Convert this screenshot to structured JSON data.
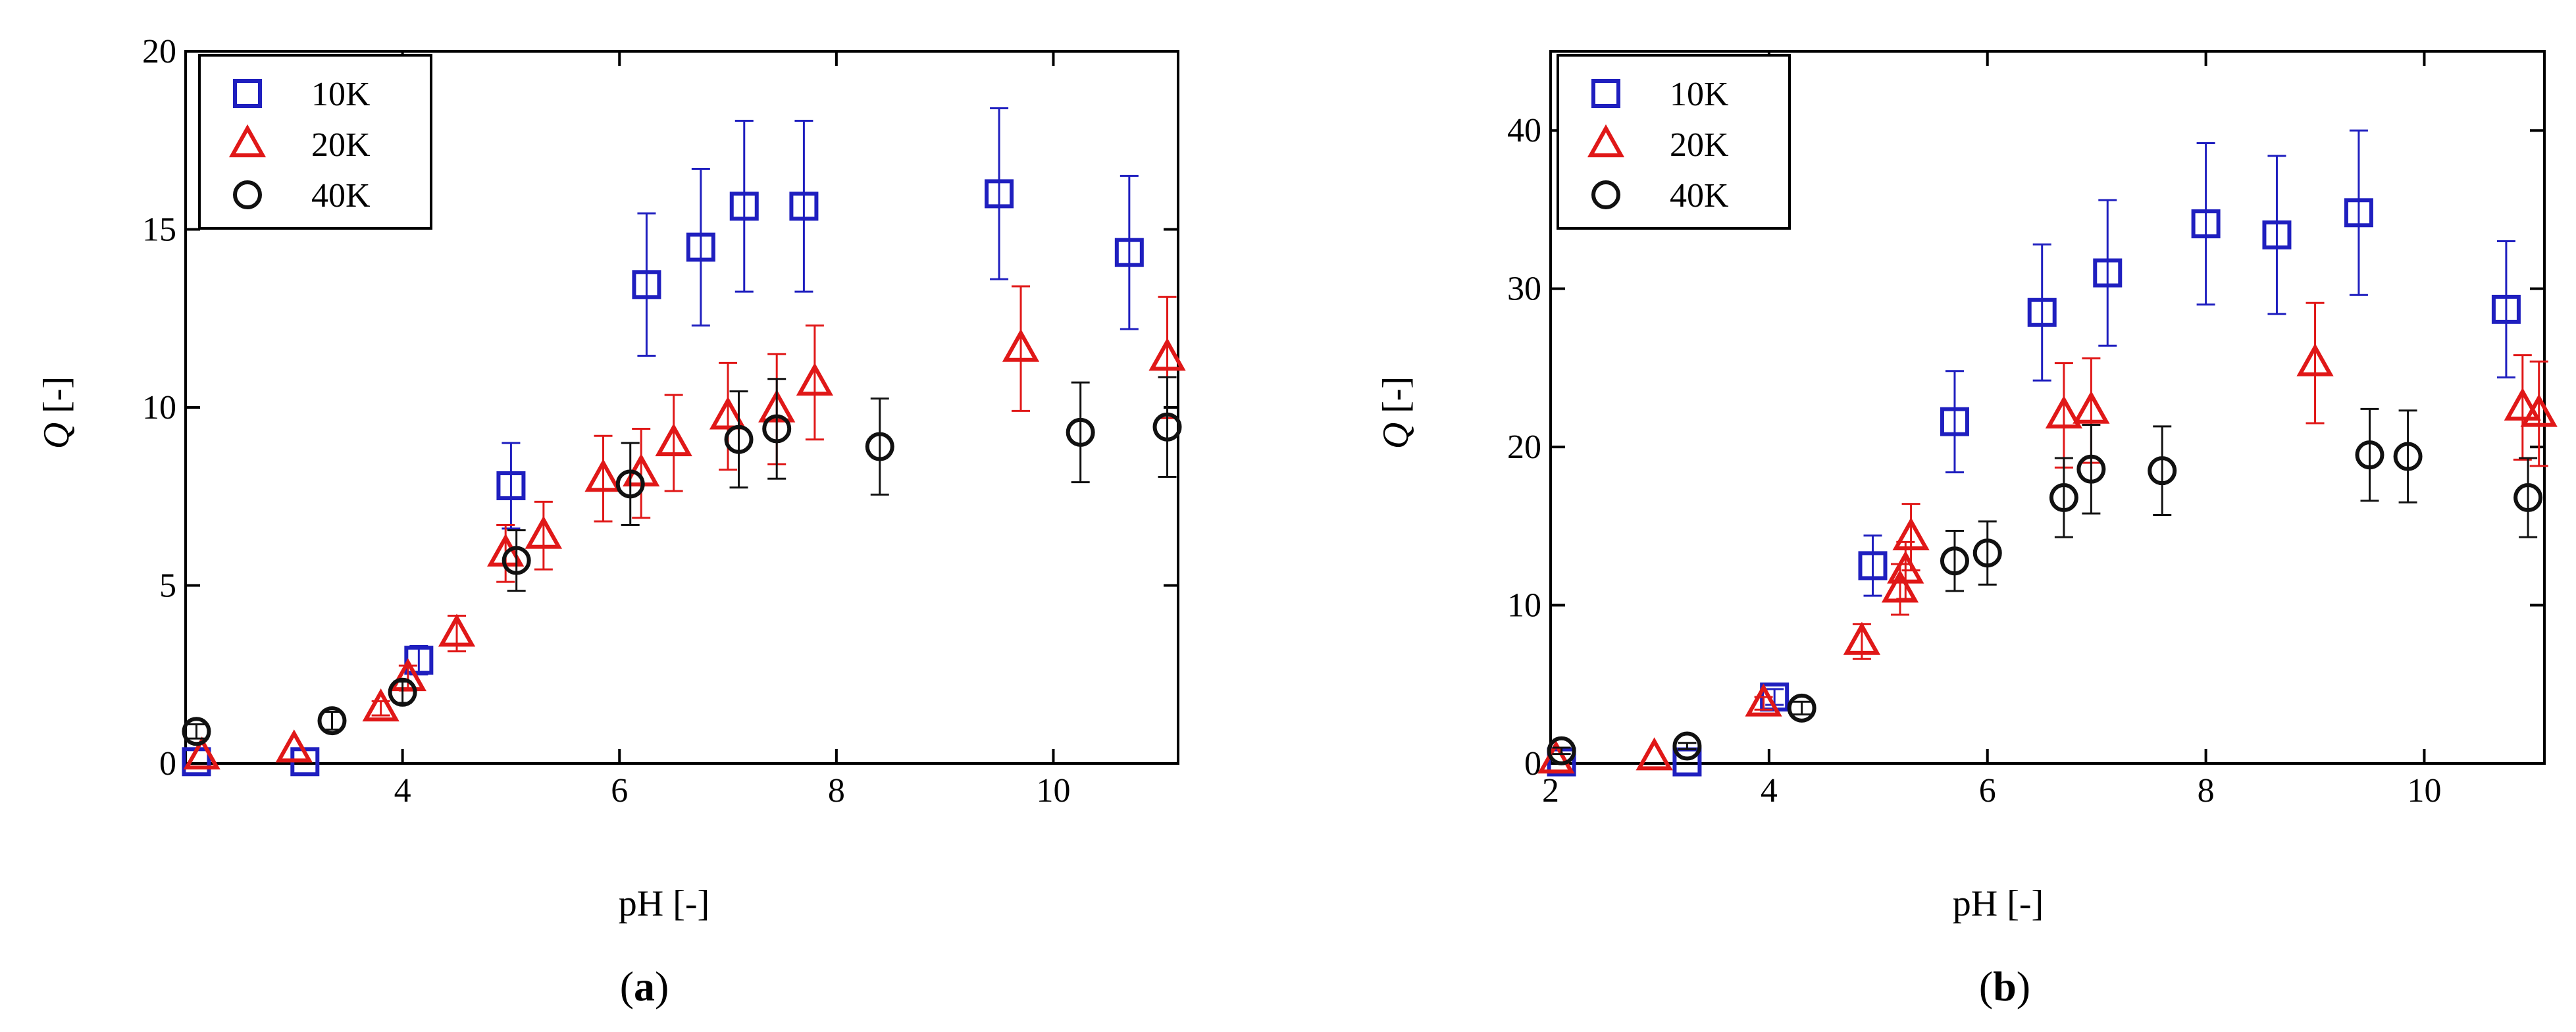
{
  "charts": [
    {
      "panel_label_open": "(",
      "panel_label_letter": "a",
      "panel_label_close": ")",
      "xlabel": "pH [-]",
      "ylabel_symbol": "Q",
      "ylabel_unit": " [-]"
    },
    {
      "panel_label_open": "(",
      "panel_label_letter": "b",
      "panel_label_close": ")",
      "xlabel": "pH [-]",
      "ylabel_symbol": "Q",
      "ylabel_unit": " [-]"
    }
  ],
  "chart_data": [
    {
      "type": "scatter",
      "panel": "a",
      "xlabel": "pH [-]",
      "ylabel": "Q [-]",
      "xlim": [
        2,
        11.15
      ],
      "ylim": [
        0,
        20
      ],
      "xticks": [
        4,
        6,
        8,
        10
      ],
      "yticks": [
        0,
        5,
        10,
        15,
        20
      ],
      "grid": false,
      "legend_position": "top-left",
      "series": [
        {
          "name": "10K",
          "marker": "square",
          "color": "#1f1fbf",
          "points": [
            {
              "x": 2.1,
              "y": 0.05,
              "err": 0
            },
            {
              "x": 3.1,
              "y": 0.05,
              "err": 0
            },
            {
              "x": 4.15,
              "y": 2.9,
              "err": 0.4
            },
            {
              "x": 5.0,
              "y": 7.8,
              "err": 1.2
            },
            {
              "x": 6.25,
              "y": 13.45,
              "err": 2.0
            },
            {
              "x": 6.75,
              "y": 14.5,
              "err": 2.2
            },
            {
              "x": 7.15,
              "y": 15.65,
              "err": 2.4
            },
            {
              "x": 7.7,
              "y": 15.65,
              "err": 2.4
            },
            {
              "x": 9.5,
              "y": 16.0,
              "err": 2.4
            },
            {
              "x": 10.7,
              "y": 14.35,
              "err": 2.15
            }
          ]
        },
        {
          "name": "20K",
          "marker": "triangle",
          "color": "#e01818",
          "points": [
            {
              "x": 2.15,
              "y": 0.2,
              "err": 0
            },
            {
              "x": 3.0,
              "y": 0.4,
              "err": 0
            },
            {
              "x": 3.8,
              "y": 1.55,
              "err": 0.2
            },
            {
              "x": 4.05,
              "y": 2.4,
              "err": 0.35
            },
            {
              "x": 4.5,
              "y": 3.65,
              "err": 0.5
            },
            {
              "x": 4.95,
              "y": 5.9,
              "err": 0.8
            },
            {
              "x": 5.3,
              "y": 6.4,
              "err": 0.95
            },
            {
              "x": 5.85,
              "y": 8.0,
              "err": 1.2
            },
            {
              "x": 6.2,
              "y": 8.15,
              "err": 1.25
            },
            {
              "x": 6.5,
              "y": 9.0,
              "err": 1.35
            },
            {
              "x": 7.0,
              "y": 9.75,
              "err": 1.5
            },
            {
              "x": 7.45,
              "y": 9.95,
              "err": 1.55
            },
            {
              "x": 7.8,
              "y": 10.7,
              "err": 1.6
            },
            {
              "x": 9.7,
              "y": 11.65,
              "err": 1.75
            },
            {
              "x": 11.05,
              "y": 11.4,
              "err": 1.7
            }
          ]
        },
        {
          "name": "40K",
          "marker": "circle",
          "color": "#111111",
          "points": [
            {
              "x": 2.1,
              "y": 0.9,
              "err": 0.2
            },
            {
              "x": 3.35,
              "y": 1.2,
              "err": 0.25
            },
            {
              "x": 4.0,
              "y": 2.0,
              "err": 0.3
            },
            {
              "x": 5.05,
              "y": 5.7,
              "err": 0.85
            },
            {
              "x": 6.1,
              "y": 7.85,
              "err": 1.15
            },
            {
              "x": 7.1,
              "y": 9.1,
              "err": 1.35
            },
            {
              "x": 7.45,
              "y": 9.4,
              "err": 1.4
            },
            {
              "x": 8.4,
              "y": 8.9,
              "err": 1.35
            },
            {
              "x": 10.25,
              "y": 9.3,
              "err": 1.4
            },
            {
              "x": 11.05,
              "y": 9.45,
              "err": 1.4
            }
          ]
        }
      ]
    },
    {
      "type": "scatter",
      "panel": "b",
      "xlabel": "pH [-]",
      "ylabel": "Q [-]",
      "xlim": [
        2,
        11.1
      ],
      "ylim": [
        0,
        45
      ],
      "xticks": [
        2,
        4,
        6,
        8,
        10
      ],
      "yticks": [
        0,
        10,
        20,
        30,
        40
      ],
      "grid": false,
      "legend_position": "top-left",
      "series": [
        {
          "name": "10K",
          "marker": "square",
          "color": "#1f1fbf",
          "points": [
            {
              "x": 2.1,
              "y": 0.1,
              "err": 0
            },
            {
              "x": 3.25,
              "y": 0.1,
              "err": 0
            },
            {
              "x": 4.05,
              "y": 4.2,
              "err": 0.5
            },
            {
              "x": 4.95,
              "y": 12.5,
              "err": 1.9
            },
            {
              "x": 5.7,
              "y": 21.6,
              "err": 3.2
            },
            {
              "x": 6.5,
              "y": 28.5,
              "err": 4.3
            },
            {
              "x": 7.1,
              "y": 31.0,
              "err": 4.6
            },
            {
              "x": 8.0,
              "y": 34.1,
              "err": 5.1
            },
            {
              "x": 8.65,
              "y": 33.4,
              "err": 5.0
            },
            {
              "x": 9.4,
              "y": 34.8,
              "err": 5.2
            },
            {
              "x": 10.75,
              "y": 28.7,
              "err": 4.3
            }
          ]
        },
        {
          "name": "20K",
          "marker": "triangle",
          "color": "#e01818",
          "points": [
            {
              "x": 2.05,
              "y": 0.2,
              "err": 0
            },
            {
              "x": 2.95,
              "y": 0.4,
              "err": 0
            },
            {
              "x": 3.95,
              "y": 3.8,
              "err": 0.4
            },
            {
              "x": 4.85,
              "y": 7.7,
              "err": 1.1
            },
            {
              "x": 5.2,
              "y": 11.0,
              "err": 1.6
            },
            {
              "x": 5.25,
              "y": 12.2,
              "err": 1.8
            },
            {
              "x": 5.3,
              "y": 14.3,
              "err": 2.1
            },
            {
              "x": 6.7,
              "y": 22.0,
              "err": 3.3
            },
            {
              "x": 6.95,
              "y": 22.3,
              "err": 3.3
            },
            {
              "x": 9.0,
              "y": 25.3,
              "err": 3.8
            },
            {
              "x": 10.9,
              "y": 22.5,
              "err": 3.3
            },
            {
              "x": 11.05,
              "y": 22.1,
              "err": 3.3
            }
          ]
        },
        {
          "name": "40K",
          "marker": "circle",
          "color": "#111111",
          "points": [
            {
              "x": 2.1,
              "y": 0.8,
              "err": 0.2
            },
            {
              "x": 3.25,
              "y": 1.1,
              "err": 0.2
            },
            {
              "x": 4.3,
              "y": 3.5,
              "err": 0.4
            },
            {
              "x": 5.7,
              "y": 12.8,
              "err": 1.9
            },
            {
              "x": 6.0,
              "y": 13.3,
              "err": 2.0
            },
            {
              "x": 6.7,
              "y": 16.8,
              "err": 2.5
            },
            {
              "x": 6.95,
              "y": 18.6,
              "err": 2.8
            },
            {
              "x": 7.6,
              "y": 18.5,
              "err": 2.8
            },
            {
              "x": 9.5,
              "y": 19.5,
              "err": 2.9
            },
            {
              "x": 9.85,
              "y": 19.4,
              "err": 2.9
            },
            {
              "x": 10.95,
              "y": 16.8,
              "err": 2.5
            }
          ]
        }
      ]
    }
  ]
}
